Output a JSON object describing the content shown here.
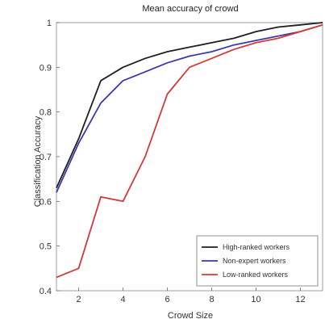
{
  "chart_data": {
    "type": "line",
    "title": "Mean accuracy of crowd",
    "xlabel": "Crowd Size",
    "ylabel": "Classification Accuracy",
    "xlim": [
      1,
      13
    ],
    "ylim": [
      0.4,
      1.0
    ],
    "xticks": [
      2,
      4,
      6,
      8,
      10,
      12
    ],
    "yticks": [
      0.4,
      0.5,
      0.6,
      0.7,
      0.8,
      0.9,
      1.0
    ],
    "ytick_labels": [
      "0.4",
      "0.5",
      "0.6",
      "0.7",
      "0.8",
      "0.9",
      "1"
    ],
    "legend_position": "bottom-right",
    "x": [
      1,
      2,
      3,
      4,
      5,
      6,
      7,
      8,
      9,
      10,
      11,
      12,
      13
    ],
    "series": [
      {
        "name": "High-ranked workers",
        "color": "#1f1f1f",
        "values": [
          0.63,
          0.74,
          0.87,
          0.9,
          0.92,
          0.935,
          0.945,
          0.955,
          0.965,
          0.98,
          0.99,
          0.995,
          1.0
        ]
      },
      {
        "name": "Non-expert workers",
        "color": "#3a3aa8",
        "values": [
          0.62,
          0.73,
          0.82,
          0.87,
          0.89,
          0.91,
          0.925,
          0.935,
          0.95,
          0.96,
          0.97,
          0.98,
          0.995
        ]
      },
      {
        "name": "Low-ranked workers",
        "color": "#d23a3a",
        "values": [
          0.43,
          0.45,
          0.61,
          0.6,
          0.7,
          0.84,
          0.9,
          0.92,
          0.94,
          0.955,
          0.965,
          0.98,
          0.995
        ]
      }
    ]
  }
}
